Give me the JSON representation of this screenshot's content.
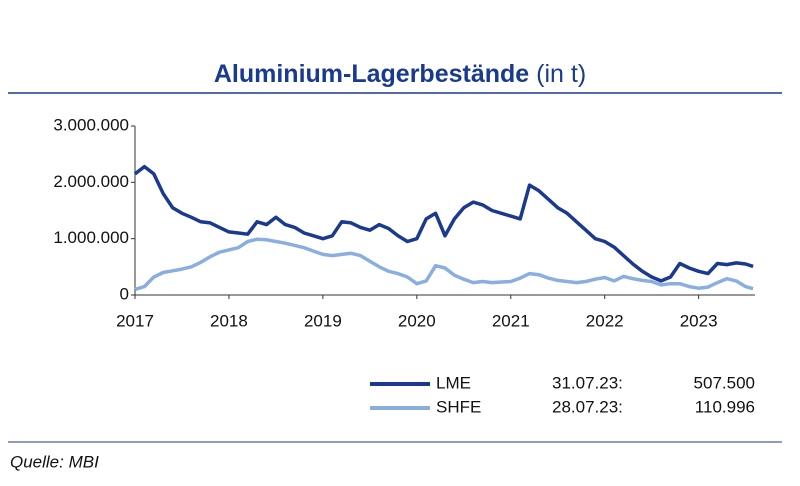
{
  "chart_data": {
    "type": "line",
    "title": "Aluminium-Lagerbestände",
    "title_unit": "(in t)",
    "source": "Quelle: MBI",
    "grid": false,
    "xlim": [
      2017,
      2023.6
    ],
    "xticks": [
      2017,
      2018,
      2019,
      2020,
      2021,
      2022,
      2023
    ],
    "ylim": [
      0,
      3000000
    ],
    "yticks": [
      0,
      {
        "value": 1000000,
        "label": "1.000.000"
      },
      {
        "value": 2000000,
        "label": "2.000.000"
      },
      {
        "value": 3000000,
        "label": "3.000.000"
      }
    ],
    "x": [
      2017.0,
      2017.1,
      2017.2,
      2017.3,
      2017.4,
      2017.5,
      2017.6,
      2017.7,
      2017.8,
      2017.9,
      2018.0,
      2018.1,
      2018.2,
      2018.3,
      2018.4,
      2018.5,
      2018.6,
      2018.7,
      2018.8,
      2018.9,
      2019.0,
      2019.1,
      2019.2,
      2019.3,
      2019.4,
      2019.5,
      2019.6,
      2019.7,
      2019.8,
      2019.9,
      2020.0,
      2020.1,
      2020.2,
      2020.3,
      2020.4,
      2020.5,
      2020.6,
      2020.7,
      2020.8,
      2020.9,
      2021.0,
      2021.1,
      2021.2,
      2021.3,
      2021.4,
      2021.5,
      2021.6,
      2021.7,
      2021.8,
      2021.9,
      2022.0,
      2022.1,
      2022.2,
      2022.3,
      2022.4,
      2022.5,
      2022.6,
      2022.7,
      2022.8,
      2022.9,
      2023.0,
      2023.1,
      2023.2,
      2023.3,
      2023.4,
      2023.5,
      2023.58
    ],
    "series": [
      {
        "name": "LME",
        "color": "#1a3a8f",
        "last_date": "31.07.23:",
        "last_value": 507500,
        "last_value_label": "507.500",
        "values": [
          2150000,
          2280000,
          2150000,
          1800000,
          1550000,
          1450000,
          1380000,
          1300000,
          1280000,
          1200000,
          1120000,
          1100000,
          1080000,
          1300000,
          1250000,
          1380000,
          1250000,
          1200000,
          1100000,
          1050000,
          1000000,
          1050000,
          1300000,
          1280000,
          1200000,
          1150000,
          1250000,
          1180000,
          1050000,
          950000,
          1000000,
          1350000,
          1450000,
          1050000,
          1350000,
          1550000,
          1650000,
          1600000,
          1500000,
          1450000,
          1400000,
          1350000,
          1950000,
          1850000,
          1700000,
          1550000,
          1450000,
          1300000,
          1150000,
          1000000,
          950000,
          850000,
          700000,
          550000,
          420000,
          320000,
          250000,
          320000,
          560000,
          480000,
          420000,
          380000,
          560000,
          540000,
          570000,
          550000,
          507500
        ]
      },
      {
        "name": "SHFE",
        "color": "#8aaee0",
        "last_date": "28.07.23:",
        "last_value": 110996,
        "last_value_label": "110.996",
        "values": [
          100000,
          150000,
          320000,
          400000,
          430000,
          460000,
          500000,
          580000,
          680000,
          760000,
          800000,
          840000,
          950000,
          990000,
          980000,
          950000,
          920000,
          880000,
          840000,
          780000,
          720000,
          700000,
          720000,
          740000,
          700000,
          600000,
          500000,
          420000,
          380000,
          320000,
          200000,
          250000,
          520000,
          480000,
          350000,
          280000,
          220000,
          240000,
          220000,
          230000,
          240000,
          300000,
          380000,
          360000,
          300000,
          260000,
          240000,
          220000,
          240000,
          280000,
          310000,
          250000,
          330000,
          290000,
          260000,
          240000,
          180000,
          200000,
          200000,
          150000,
          120000,
          140000,
          220000,
          290000,
          250000,
          150000,
          110996
        ]
      }
    ]
  }
}
